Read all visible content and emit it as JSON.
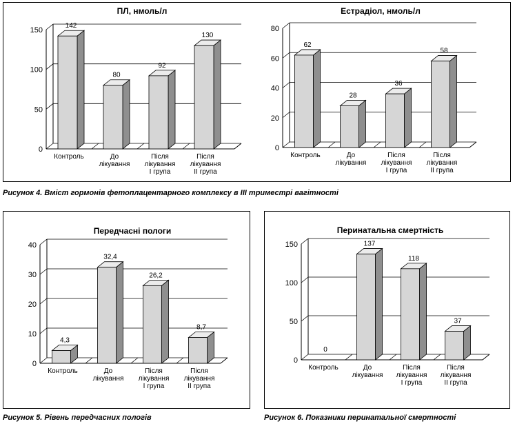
{
  "charts": [
    {
      "type": "bar",
      "title": "ПЛ, нмоль/л",
      "categories": [
        [
          "Контроль"
        ],
        [
          "До",
          "лікування"
        ],
        [
          "Після",
          "лікування",
          "І група"
        ],
        [
          "Після",
          "лікування",
          "ІІ група"
        ]
      ],
      "values": [
        142,
        80,
        92,
        130
      ],
      "value_labels": [
        "142",
        "80",
        "92",
        "130"
      ],
      "yticks": [
        0,
        50,
        100,
        150
      ],
      "ylim": [
        0,
        150
      ]
    },
    {
      "type": "bar",
      "title": "Естрадіол, нмоль/л",
      "categories": [
        [
          "Контроль"
        ],
        [
          "До",
          "лікування"
        ],
        [
          "Після",
          "лікування",
          "І група"
        ],
        [
          "Після",
          "лікування",
          "ІІ група"
        ]
      ],
      "values": [
        62,
        28,
        36,
        58
      ],
      "value_labels": [
        "62",
        "28",
        "36",
        "58"
      ],
      "yticks": [
        0,
        20,
        40,
        60,
        80
      ],
      "ylim": [
        0,
        80
      ]
    },
    {
      "type": "bar",
      "title": "Передчасні пологи",
      "categories": [
        [
          "Контроль"
        ],
        [
          "До",
          "лікування"
        ],
        [
          "Після",
          "лікування",
          "І група"
        ],
        [
          "Після",
          "лікування",
          "ІІ група"
        ]
      ],
      "values": [
        4.3,
        32.4,
        26.2,
        8.7
      ],
      "value_labels": [
        "4,3",
        "32,4",
        "26,2",
        "8,7"
      ],
      "yticks": [
        0,
        10,
        20,
        30,
        40
      ],
      "ylim": [
        0,
        40
      ]
    },
    {
      "type": "bar",
      "title": "Перинатальна смертність",
      "categories": [
        [
          "Контроль"
        ],
        [
          "До",
          "лікування"
        ],
        [
          "Після",
          "лікування",
          "І група"
        ],
        [
          "Після",
          "лікування",
          "ІІ група"
        ]
      ],
      "values": [
        0,
        137,
        118,
        37
      ],
      "value_labels": [
        "0",
        "137",
        "118",
        "37"
      ],
      "yticks": [
        0,
        50,
        100,
        150
      ],
      "ylim": [
        0,
        150
      ]
    }
  ],
  "captions": [
    "Рисунок 4. Вміст гормонів фетоплацентарного комплексу в ІІІ триместрі вагітності",
    "Рисунок 5. Рівень передчасних пологів",
    "Рисунок 6. Показники перинатальної смертності"
  ]
}
